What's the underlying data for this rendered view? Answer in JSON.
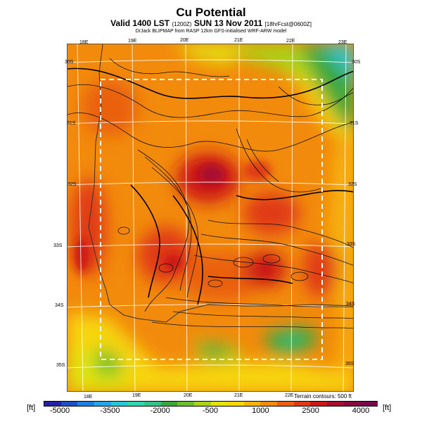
{
  "header": {
    "title": "Cu Potential",
    "subtitle_main": "Valid 1400 LST",
    "subtitle_small1": "(1200Z)",
    "subtitle_main2": "SUN 13 Nov 2011",
    "subtitle_small2": "[18hrFcst@0600Z]",
    "credit": "DrJack BLIPMAP from RASP 12km GFS-initialised WRF-ARW model"
  },
  "map": {
    "lon_labels_top": [
      "18E",
      "19E",
      "20E",
      "21E",
      "22E",
      "23E"
    ],
    "lon_labels_bottom": [
      "18E",
      "19E",
      "20E",
      "21E",
      "22E"
    ],
    "lat_labels_left": [
      "30S",
      "31S",
      "32S",
      "33S",
      "34S",
      "35S"
    ],
    "lat_labels_right": [
      "30S",
      "31S",
      "32S",
      "33S",
      "34S",
      "35S"
    ],
    "terrain_note": "Terrain contours: 500 ft"
  },
  "colorbar": {
    "unit_left": "[ft]",
    "unit_right": "[ft]",
    "ticks": [
      "-5000",
      "-3500",
      "-2000",
      "-500",
      "1000",
      "2500",
      "4000"
    ],
    "colors": [
      "#2222aa",
      "#1f4fc8",
      "#1e7fe0",
      "#22a8e8",
      "#26c8d8",
      "#2fd6b0",
      "#2ec48a",
      "#3aa83a",
      "#6cbf2a",
      "#a8d418",
      "#e2e40c",
      "#f7d60a",
      "#f7b40a",
      "#f28a0c",
      "#ea6010",
      "#e03a14",
      "#cc1818",
      "#a81030",
      "#8a0a3e",
      "#7a0a4a"
    ]
  }
}
